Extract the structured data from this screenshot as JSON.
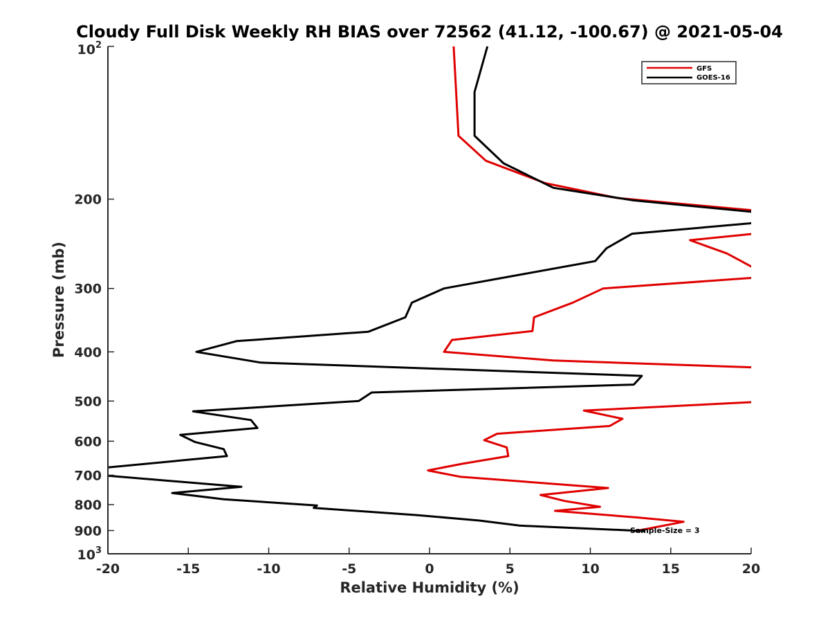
{
  "chart_data": {
    "type": "line",
    "title": "Cloudy Full Disk Weekly RH BIAS over 72562 (41.12, -100.67) @ 2021-05-04",
    "xlabel": "Relative Humidity (%)",
    "ylabel": "Pressure (mb)",
    "xlim": [
      -20,
      20
    ],
    "ylim": [
      100,
      1000
    ],
    "y_scale": "log",
    "y_reversed": true,
    "x_ticks": [
      -20,
      -15,
      -10,
      -5,
      0,
      5,
      10,
      15,
      20
    ],
    "x_tick_labels": [
      "-20",
      "-15",
      "-10",
      "-5",
      "0",
      "5",
      "10",
      "15",
      "20"
    ],
    "y_ticks": [
      {
        "value": 100,
        "label": "10",
        "sup": "2"
      },
      {
        "value": 200,
        "label": "200",
        "sup": ""
      },
      {
        "value": 300,
        "label": "300",
        "sup": ""
      },
      {
        "value": 400,
        "label": "400",
        "sup": ""
      },
      {
        "value": 500,
        "label": "500",
        "sup": ""
      },
      {
        "value": 600,
        "label": "600",
        "sup": ""
      },
      {
        "value": 700,
        "label": "700",
        "sup": ""
      },
      {
        "value": 800,
        "label": "800",
        "sup": ""
      },
      {
        "value": 900,
        "label": "900",
        "sup": ""
      },
      {
        "value": 1000,
        "label": "10",
        "sup": "3"
      }
    ],
    "grid": false,
    "legend_position": "top-right",
    "annotation": "Sample-Size = 3",
    "series": [
      {
        "name": "GFS",
        "color": "#e00000",
        "points": [
          [
            1.5,
            100
          ],
          [
            1.8,
            150
          ],
          [
            3.5,
            168
          ],
          [
            7.2,
            186
          ],
          [
            11.7,
            199
          ],
          [
            20.5,
            211
          ],
          [
            20.8,
            233
          ],
          [
            16.2,
            241
          ],
          [
            18.5,
            256
          ],
          [
            20.6,
            278
          ],
          [
            20.7,
            285
          ],
          [
            10.8,
            300
          ],
          [
            8.9,
            320
          ],
          [
            6.5,
            342
          ],
          [
            6.4,
            364
          ],
          [
            1.4,
            379
          ],
          [
            0.9,
            400
          ],
          [
            7.7,
            416
          ],
          [
            20.9,
            430
          ],
          [
            20.9,
            501
          ],
          [
            9.6,
            522
          ],
          [
            12.0,
            542
          ],
          [
            11.2,
            560
          ],
          [
            4.2,
            580
          ],
          [
            3.4,
            597
          ],
          [
            4.8,
            617
          ],
          [
            4.9,
            642
          ],
          [
            2.0,
            665
          ],
          [
            -0.1,
            685
          ],
          [
            1.9,
            705
          ],
          [
            11.1,
            742
          ],
          [
            6.9,
            766
          ],
          [
            8.4,
            787
          ],
          [
            10.6,
            808
          ],
          [
            7.8,
            823
          ],
          [
            12.9,
            848
          ],
          [
            15.8,
            865
          ],
          [
            12.8,
            902
          ]
        ]
      },
      {
        "name": "GOES-16",
        "color": "#000000",
        "points": [
          [
            3.6,
            100
          ],
          [
            2.8,
            123
          ],
          [
            2.8,
            150
          ],
          [
            4.6,
            170
          ],
          [
            7.7,
            190
          ],
          [
            12.6,
            201
          ],
          [
            20.8,
            213
          ],
          [
            20.8,
            222
          ],
          [
            12.6,
            234
          ],
          [
            11.0,
            250
          ],
          [
            10.3,
            265
          ],
          [
            0.9,
            300
          ],
          [
            -1.1,
            320
          ],
          [
            -1.5,
            342
          ],
          [
            -3.8,
            365
          ],
          [
            -12.0,
            381
          ],
          [
            -14.5,
            400
          ],
          [
            -10.5,
            420
          ],
          [
            13.2,
            446
          ],
          [
            12.7,
            464
          ],
          [
            -3.6,
            481
          ],
          [
            -4.4,
            500
          ],
          [
            -14.7,
            524
          ],
          [
            -11.1,
            545
          ],
          [
            -10.7,
            565
          ],
          [
            -15.5,
            583
          ],
          [
            -14.6,
            602
          ],
          [
            -12.8,
            622
          ],
          [
            -12.6,
            642
          ],
          [
            -20.5,
            678
          ],
          [
            -20.4,
            700
          ],
          [
            -11.7,
            738
          ],
          [
            -16.0,
            759
          ],
          [
            -12.8,
            781
          ],
          [
            -7.0,
            803
          ],
          [
            -7.2,
            812
          ],
          [
            -0.8,
            839
          ],
          [
            3.1,
            860
          ],
          [
            5.6,
            880
          ],
          [
            13.4,
            902
          ]
        ]
      }
    ]
  }
}
